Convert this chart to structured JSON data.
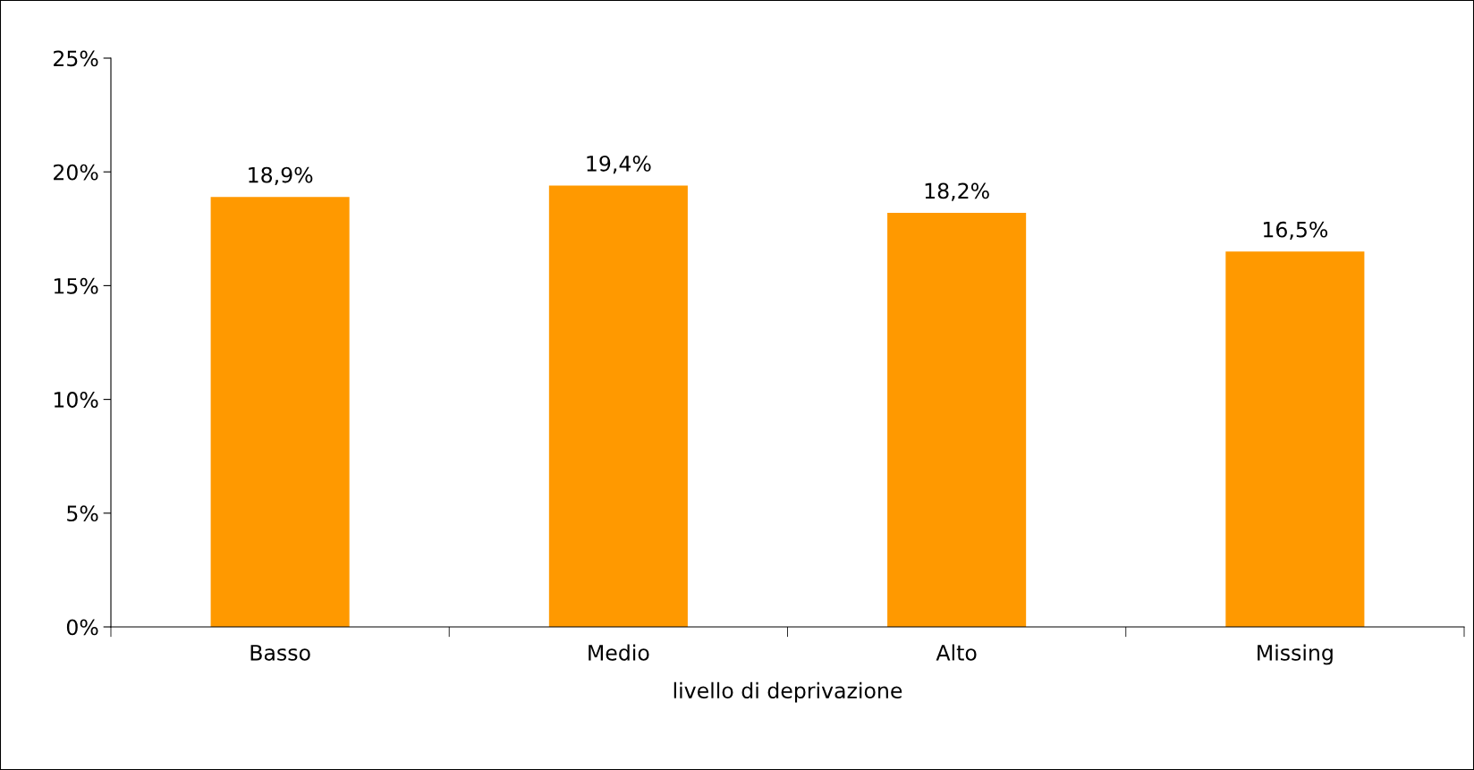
{
  "chart_data": {
    "type": "bar",
    "xlabel": "livello di deprivazione",
    "categories": [
      "Basso",
      "Medio",
      "Alto",
      "Missing"
    ],
    "values": [
      18.9,
      19.4,
      18.2,
      16.5
    ],
    "value_labels": [
      "18,9%",
      "19,4%",
      "18,2%",
      "16,5%"
    ],
    "color": "#ff9900",
    "ylim": [
      0,
      25
    ],
    "yticks": [
      {
        "value": 0,
        "label": "0%"
      },
      {
        "value": 5,
        "label": "5%"
      },
      {
        "value": 10,
        "label": "10%"
      },
      {
        "value": 15,
        "label": "15%"
      },
      {
        "value": 20,
        "label": "20%"
      },
      {
        "value": 25,
        "label": "25%"
      }
    ],
    "grid": false
  }
}
